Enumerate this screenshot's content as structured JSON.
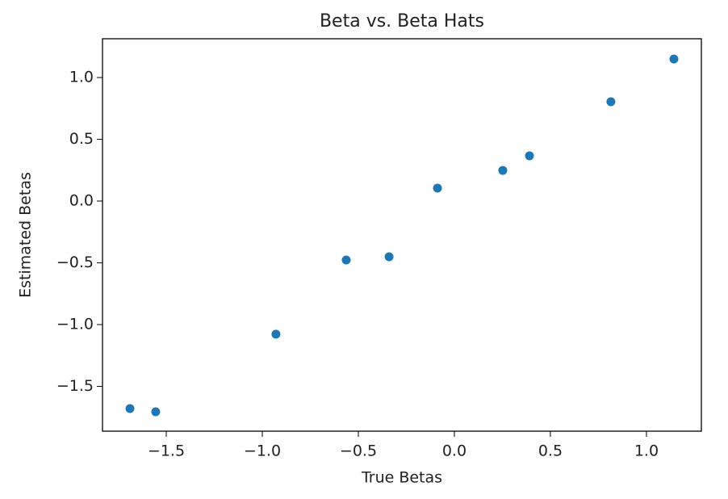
{
  "chart_data": {
    "type": "scatter",
    "title": "Beta vs. Beta Hats",
    "x_label": "True Betas",
    "y_label": "Estimated Betas",
    "color": "#1f77b4",
    "x": [
      -1.689,
      -1.555,
      -0.929,
      -0.563,
      -0.34,
      -0.088,
      0.252,
      0.391,
      0.815,
      1.143
    ],
    "y": [
      -1.68,
      -1.706,
      -1.078,
      -0.477,
      -0.451,
      0.105,
      0.248,
      0.366,
      0.804,
      1.15
    ],
    "xlim": [
      -1.832,
      1.286
    ],
    "ylim": [
      -1.863,
      1.314
    ],
    "xticks": [
      {
        "value": -1.5,
        "label": "−1.5"
      },
      {
        "value": -1.0,
        "label": "−1.0"
      },
      {
        "value": -0.5,
        "label": "−0.5"
      },
      {
        "value": 0.0,
        "label": "0.0"
      },
      {
        "value": 0.5,
        "label": "0.5"
      },
      {
        "value": 1.0,
        "label": "1.0"
      }
    ],
    "yticks": [
      {
        "value": -1.5,
        "label": "−1.5"
      },
      {
        "value": -1.0,
        "label": "−1.0"
      },
      {
        "value": -0.5,
        "label": "−0.5"
      },
      {
        "value": 0.0,
        "label": "0.0"
      },
      {
        "value": 0.5,
        "label": "0.5"
      },
      {
        "value": 1.0,
        "label": "1.0"
      }
    ]
  }
}
